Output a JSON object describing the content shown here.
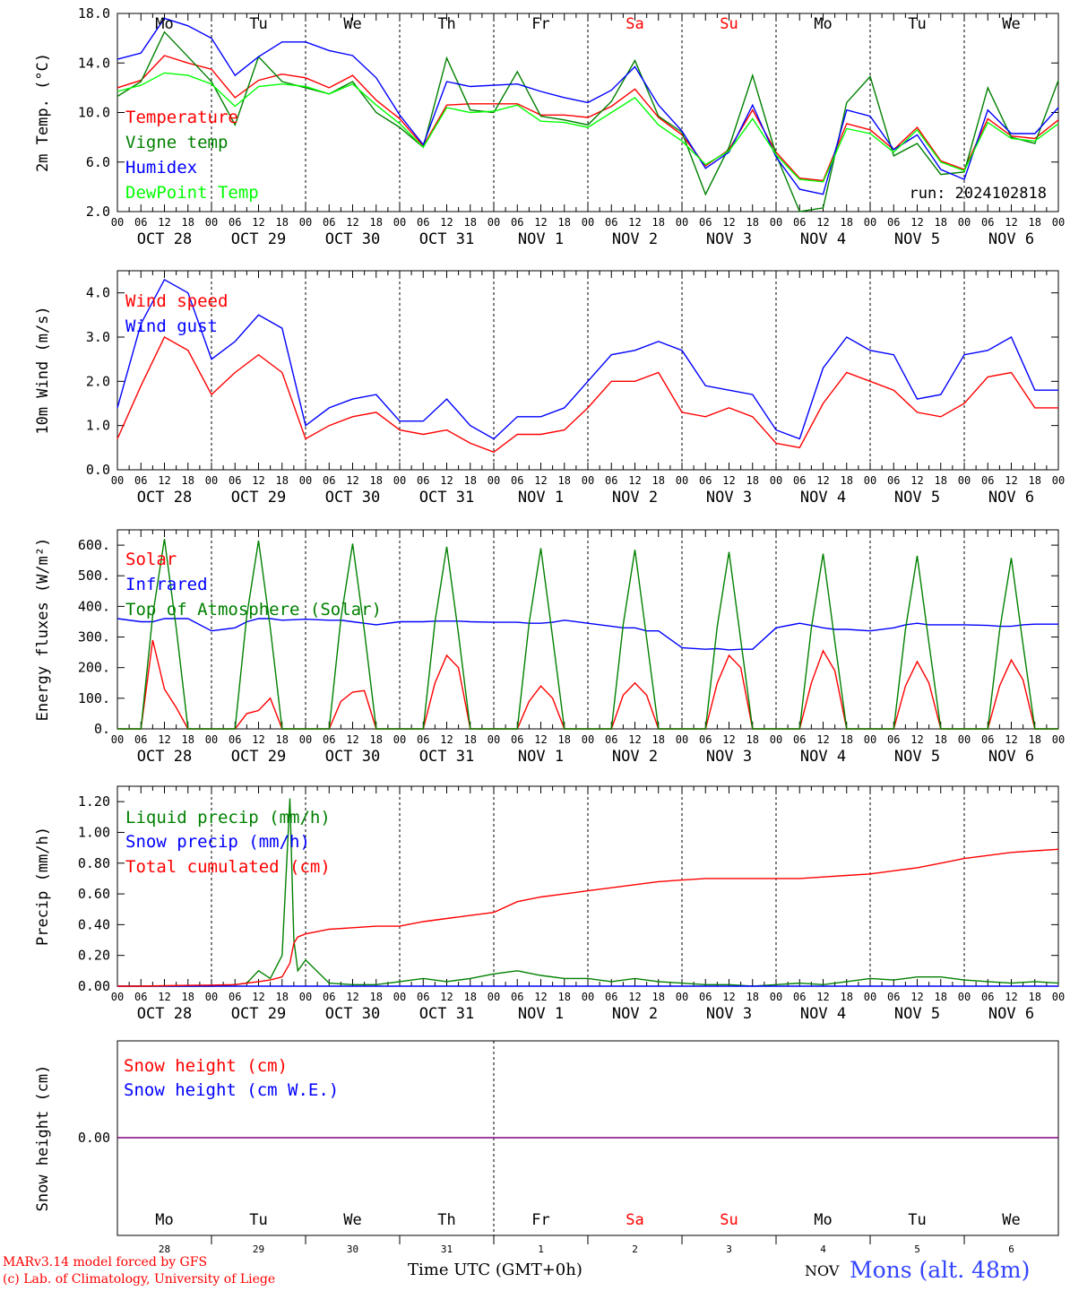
{
  "days": [
    "Mo",
    "Tu",
    "We",
    "Th",
    "Fr",
    "Sa",
    "Su",
    "Mo",
    "Tu",
    "We"
  ],
  "weekend_days": [
    5,
    6
  ],
  "dates": [
    "OCT 28",
    "OCT 29",
    "OCT 30",
    "OCT 31",
    "NOV  1",
    "NOV  2",
    "NOV  3",
    "NOV  4",
    "NOV  5",
    "NOV  6"
  ],
  "hour_ticks": [
    "00",
    "06",
    "12",
    "18"
  ],
  "hour_end": "00",
  "snow_dates": [
    "28",
    "29",
    "30",
    "31",
    "1",
    "2",
    "3",
    "4",
    "5",
    "6"
  ],
  "month_label": "NOV",
  "time_label": "Time UTC (GMT+0h)",
  "station": "Mons (alt. 48m)",
  "credit_1": "MARv3.14 model forced by GFS",
  "credit_2": "(c) Lab. of Climatology, University of Liege",
  "colors": {
    "red": "#ff0000",
    "darkgreen": "#008000",
    "blue": "#0000ff",
    "lightgreen": "#00ff00",
    "purple": "#800080",
    "station": "#3344ff"
  },
  "chart_data": [
    {
      "type": "line",
      "ylabel": "2m Temp. (°C)",
      "ylim": [
        2,
        18
      ],
      "yticks": [
        "2.0",
        "6.0",
        "10.0",
        "14.0",
        "18.0"
      ],
      "run_label": "run: 2024102818",
      "x_hours": [
        0,
        6,
        12,
        18,
        24,
        30,
        36,
        42,
        48,
        54,
        60,
        66,
        72,
        78,
        84,
        90,
        96,
        102,
        108,
        114,
        120,
        126,
        132,
        138,
        144,
        150,
        156,
        162,
        168,
        174,
        180,
        186,
        192,
        198,
        204,
        210,
        216,
        222,
        228,
        234,
        240
      ],
      "series": [
        {
          "name": "Temperature",
          "color": "#ff0000",
          "values": [
            12,
            12.6,
            14.6,
            14,
            13.5,
            11.2,
            12.6,
            13.1,
            12.8,
            12,
            13,
            11,
            9.5,
            7.3,
            10.6,
            10.7,
            10.7,
            10.7,
            9.8,
            9.8,
            9.6,
            10.5,
            11.9,
            9.6,
            8.2,
            5.7,
            7,
            10.2,
            6.8,
            4.7,
            4.5,
            9.1,
            8.6,
            7,
            8.8,
            6.1,
            5.4,
            9.5,
            8.1,
            7.9,
            9.4
          ]
        },
        {
          "name": "Vigne temp",
          "color": "#008000",
          "values": [
            11.3,
            12.5,
            16.5,
            14.5,
            12.5,
            9,
            14.5,
            12.5,
            12,
            11.5,
            12.5,
            10,
            8.8,
            7.2,
            14.4,
            10.2,
            10,
            13.3,
            9.7,
            9.4,
            9,
            10.9,
            14.2,
            9.7,
            8.4,
            3.4,
            7.2,
            13,
            6.6,
            2,
            2.3,
            10.8,
            12.9,
            6.5,
            7.5,
            5,
            5.2,
            12,
            8,
            7.5,
            12.6
          ]
        },
        {
          "name": "Humidex",
          "color": "#0000ff",
          "values": [
            14.3,
            14.8,
            17.6,
            17,
            16,
            13,
            14.5,
            15.7,
            15.7,
            15,
            14.6,
            12.8,
            9.8,
            7.4,
            12.5,
            12.1,
            12.2,
            12.3,
            11.7,
            11.2,
            10.8,
            11.8,
            13.7,
            10.6,
            8.5,
            5.5,
            6.8,
            10.6,
            6.4,
            3.8,
            3.4,
            10.2,
            9.7,
            7,
            8.2,
            5.4,
            4.6,
            10.2,
            8.3,
            8.3,
            10.4
          ]
        },
        {
          "name": "DewPoint Temp",
          "color": "#00ff00",
          "values": [
            11.7,
            12.2,
            13.2,
            13,
            12.3,
            10.5,
            12.1,
            12.3,
            12.1,
            11.5,
            12.3,
            10.6,
            9.1,
            7.2,
            10.4,
            10,
            10.1,
            10.6,
            9.3,
            9.2,
            8.8,
            10,
            11.2,
            9,
            7.7,
            5.8,
            6.9,
            9.5,
            6.6,
            4.6,
            4.4,
            8.7,
            8.3,
            6.8,
            8.6,
            6,
            5.3,
            9.2,
            7.9,
            7.7,
            9.1
          ]
        }
      ]
    },
    {
      "type": "line",
      "ylabel": "10m Wind (m/s)",
      "ylim": [
        0,
        4.5
      ],
      "yticks": [
        "0.0",
        "1.0",
        "2.0",
        "3.0",
        "4.0"
      ],
      "x_hours": [
        0,
        6,
        12,
        18,
        24,
        30,
        36,
        42,
        48,
        54,
        60,
        66,
        72,
        78,
        84,
        90,
        96,
        102,
        108,
        114,
        120,
        126,
        132,
        138,
        144,
        150,
        156,
        162,
        168,
        174,
        180,
        186,
        192,
        198,
        204,
        210,
        216,
        222,
        228,
        234,
        240
      ],
      "series": [
        {
          "name": "Wind speed",
          "color": "#ff0000",
          "values": [
            0.7,
            1.9,
            3,
            2.7,
            1.7,
            2.2,
            2.6,
            2.2,
            0.7,
            1,
            1.2,
            1.3,
            0.9,
            0.8,
            0.9,
            0.6,
            0.4,
            0.8,
            0.8,
            0.9,
            1.4,
            2,
            2,
            2.2,
            1.3,
            1.2,
            1.4,
            1.2,
            0.6,
            0.5,
            1.5,
            2.2,
            2,
            1.8,
            1.3,
            1.2,
            1.5,
            2.1,
            2.2,
            1.4,
            1.4
          ]
        },
        {
          "name": "Wind gust",
          "color": "#0000ff",
          "values": [
            1.4,
            3.3,
            4.3,
            4,
            2.5,
            2.9,
            3.5,
            3.2,
            1,
            1.4,
            1.6,
            1.7,
            1.1,
            1.1,
            1.6,
            1,
            0.7,
            1.2,
            1.2,
            1.4,
            2,
            2.6,
            2.7,
            2.9,
            2.7,
            1.9,
            1.8,
            1.7,
            0.9,
            0.7,
            2.3,
            3,
            2.7,
            2.6,
            1.6,
            1.7,
            2.6,
            2.7,
            3,
            1.8,
            1.8
          ]
        }
      ]
    },
    {
      "type": "line",
      "ylabel": "Energy fluxes (W/m²)",
      "ylim": [
        0,
        650
      ],
      "yticks": [
        "0.",
        "100.",
        "200.",
        "300.",
        "400.",
        "500.",
        "600."
      ],
      "x_hours": [
        0,
        6,
        9,
        12,
        15,
        18,
        24,
        30,
        33,
        36,
        39,
        42,
        48,
        54,
        57,
        60,
        63,
        66,
        72,
        78,
        81,
        84,
        87,
        90,
        96,
        102,
        105,
        108,
        111,
        114,
        120,
        126,
        129,
        132,
        135,
        138,
        144,
        150,
        153,
        156,
        159,
        162,
        168,
        174,
        177,
        180,
        183,
        186,
        192,
        198,
        201,
        204,
        207,
        210,
        216,
        222,
        225,
        228,
        231,
        234,
        240
      ],
      "series": [
        {
          "name": "Solar",
          "color": "#ff0000",
          "values": [
            0,
            0,
            290,
            130,
            70,
            0,
            0,
            0,
            50,
            60,
            100,
            0,
            0,
            0,
            90,
            120,
            125,
            0,
            0,
            0,
            150,
            240,
            200,
            0,
            0,
            0,
            90,
            140,
            100,
            0,
            0,
            0,
            110,
            150,
            110,
            0,
            0,
            0,
            150,
            240,
            200,
            0,
            0,
            0,
            150,
            255,
            190,
            0,
            0,
            0,
            140,
            220,
            150,
            0,
            0,
            0,
            140,
            225,
            160,
            0,
            0
          ]
        },
        {
          "name": "Infrared",
          "color": "#0000ff",
          "values": [
            360,
            350,
            350,
            360,
            360,
            360,
            320,
            330,
            350,
            360,
            360,
            355,
            358,
            355,
            355,
            350,
            345,
            340,
            350,
            350,
            352,
            352,
            352,
            350,
            348,
            348,
            345,
            345,
            348,
            355,
            345,
            335,
            330,
            330,
            320,
            320,
            265,
            260,
            262,
            258,
            260,
            260,
            330,
            345,
            338,
            330,
            325,
            325,
            320,
            330,
            340,
            345,
            340,
            340,
            340,
            338,
            335,
            335,
            340,
            342,
            342
          ]
        },
        {
          "name": "Top of Atmosphere (Solar)",
          "color": "#008000",
          "values": [
            0,
            0,
            370,
            620,
            330,
            0,
            0,
            0,
            370,
            615,
            330,
            0,
            0,
            0,
            360,
            605,
            320,
            0,
            0,
            0,
            350,
            595,
            310,
            0,
            0,
            0,
            345,
            590,
            300,
            0,
            0,
            0,
            340,
            585,
            295,
            0,
            0,
            0,
            335,
            578,
            290,
            0,
            0,
            0,
            330,
            572,
            285,
            0,
            0,
            0,
            325,
            565,
            280,
            0,
            0,
            0,
            320,
            558,
            275,
            0,
            0
          ]
        }
      ]
    },
    {
      "type": "line",
      "ylabel": "Precip (mm/h)",
      "ylim": [
        0,
        1.3
      ],
      "yticks": [
        "0.00",
        "0.20",
        "0.40",
        "0.60",
        "0.80",
        "1.00",
        "1.20"
      ],
      "x_hours": [
        0,
        6,
        12,
        18,
        24,
        30,
        33,
        36,
        39,
        42,
        44,
        45,
        46,
        48,
        54,
        60,
        66,
        72,
        78,
        84,
        90,
        96,
        102,
        108,
        114,
        120,
        126,
        132,
        138,
        144,
        150,
        156,
        162,
        168,
        174,
        180,
        186,
        192,
        198,
        204,
        210,
        216,
        222,
        228,
        234,
        240
      ],
      "series": [
        {
          "name": "Liquid precip (mm/h)",
          "color": "#008000",
          "values": [
            0,
            0,
            0,
            0,
            0,
            0.01,
            0.02,
            0.1,
            0.05,
            0.2,
            1.22,
            0.3,
            0.1,
            0.17,
            0.02,
            0.01,
            0.01,
            0.03,
            0.05,
            0.03,
            0.05,
            0.08,
            0.1,
            0.07,
            0.05,
            0.05,
            0.03,
            0.05,
            0.03,
            0.02,
            0.01,
            0.01,
            0,
            0.01,
            0.02,
            0.01,
            0.03,
            0.05,
            0.04,
            0.06,
            0.06,
            0.04,
            0.03,
            0.02,
            0.03,
            0.02
          ]
        },
        {
          "name": "Snow precip (mm/h)",
          "color": "#0000ff",
          "values": [
            0,
            0,
            0,
            0,
            0,
            0,
            0,
            0,
            0,
            0,
            0,
            0,
            0,
            0,
            0,
            0,
            0,
            0,
            0,
            0,
            0,
            0,
            0,
            0,
            0,
            0,
            0,
            0,
            0,
            0,
            0,
            0,
            0,
            0,
            0,
            0,
            0,
            0,
            0,
            0,
            0,
            0,
            0,
            0,
            0,
            0
          ]
        },
        {
          "name": "Total cumulated (cm)",
          "color": "#ff0000",
          "values": [
            0,
            0,
            0.003,
            0.005,
            0.007,
            0.01,
            0.02,
            0.03,
            0.04,
            0.06,
            0.15,
            0.28,
            0.32,
            0.34,
            0.37,
            0.38,
            0.39,
            0.39,
            0.42,
            0.44,
            0.46,
            0.48,
            0.55,
            0.58,
            0.6,
            0.62,
            0.64,
            0.66,
            0.68,
            0.69,
            0.7,
            0.7,
            0.7,
            0.7,
            0.7,
            0.71,
            0.72,
            0.73,
            0.75,
            0.77,
            0.8,
            0.83,
            0.85,
            0.87,
            0.88,
            0.89
          ]
        }
      ]
    },
    {
      "type": "line",
      "ylabel": "Snow height (cm)",
      "yticks": [
        "0.00"
      ],
      "x_hours": [
        0,
        240
      ],
      "series": [
        {
          "name": "Snow height (cm)",
          "color": "#ff0000",
          "values": [
            0,
            0
          ]
        },
        {
          "name": "Snow height (cm W.E.)",
          "color": "#0000ff",
          "values": [
            0,
            0
          ]
        }
      ]
    }
  ]
}
